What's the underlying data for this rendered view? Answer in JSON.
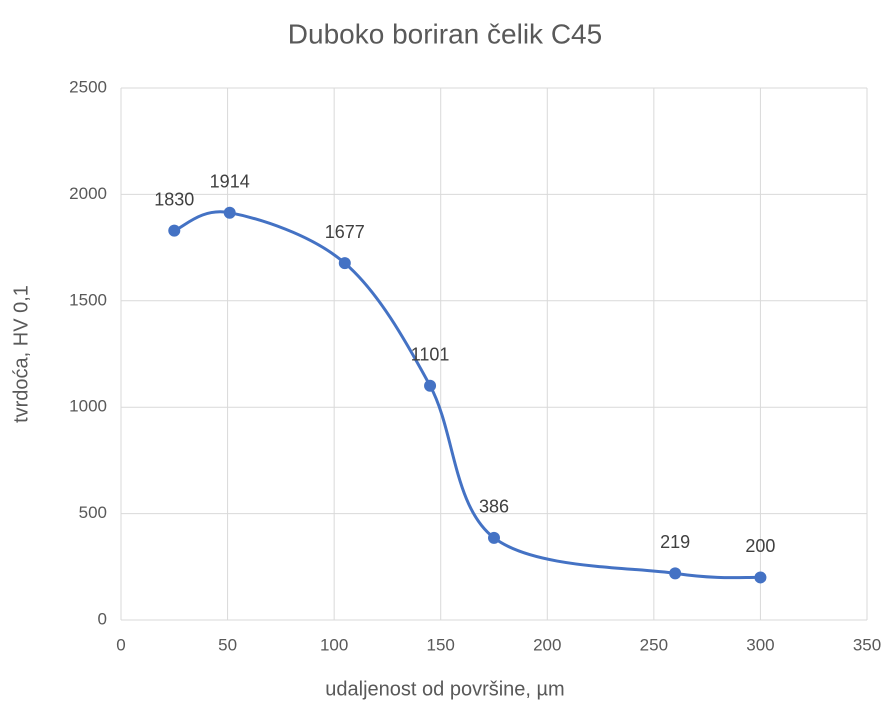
{
  "chart_data": {
    "type": "scatter",
    "title": "Duboko boriran čelik C45",
    "xlabel": "udaljenost od površine, µm",
    "ylabel": "tvrdoća, HV 0,1",
    "series": [
      {
        "name": "tvrdoća",
        "color": "#4472c4",
        "x": [
          25,
          51,
          105,
          145,
          175,
          260,
          300
        ],
        "values": [
          1830,
          1914,
          1677,
          1101,
          386,
          219,
          200
        ]
      }
    ],
    "smooth": true,
    "show_legend": false,
    "xlim": [
      0,
      350
    ],
    "xticks": [
      0,
      50,
      100,
      150,
      200,
      250,
      300,
      350
    ],
    "ylim": [
      0,
      2500
    ],
    "yticks": [
      0,
      500,
      1000,
      1500,
      2000,
      2500
    ],
    "grid": true
  }
}
